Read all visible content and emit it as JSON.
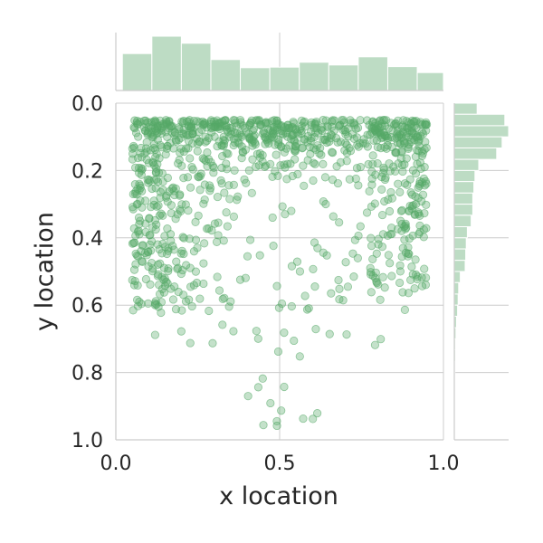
{
  "chart_data": {
    "type": "scatter",
    "title": "",
    "xlabel": "x location",
    "ylabel": "y location",
    "xlim": [
      0.0,
      1.0
    ],
    "ylim": [
      1.0,
      0.0
    ],
    "y_inverted": true,
    "x_ticks": [
      "0.0",
      "0.5",
      "1.0"
    ],
    "y_ticks": [
      "0.0",
      "0.2",
      "0.4",
      "0.6",
      "0.8",
      "1.0"
    ],
    "grid": true,
    "marker_color": "#55a868",
    "marker_alpha": 0.35,
    "point_count": 1100,
    "marginal_x_histogram": {
      "bin_edges": [
        0.02,
        0.11,
        0.2,
        0.29,
        0.38,
        0.47,
        0.56,
        0.65,
        0.74,
        0.83,
        0.92,
        1.0
      ],
      "relative_heights": [
        0.68,
        1.0,
        0.87,
        0.57,
        0.42,
        0.43,
        0.52,
        0.47,
        0.62,
        0.44,
        0.33
      ]
    },
    "marginal_y_histogram": {
      "bin_edges": [
        0.0,
        0.033,
        0.067,
        0.1,
        0.133,
        0.167,
        0.2,
        0.233,
        0.267,
        0.3,
        0.333,
        0.367,
        0.4,
        0.433,
        0.467,
        0.5,
        0.533,
        0.567,
        0.6,
        0.633,
        0.667,
        0.7,
        0.733,
        0.767,
        0.8,
        0.833,
        0.867,
        0.9,
        0.933,
        0.967,
        1.0
      ],
      "relative_heights": [
        0.42,
        0.93,
        1.0,
        0.88,
        0.78,
        0.45,
        0.38,
        0.36,
        0.34,
        0.34,
        0.31,
        0.24,
        0.22,
        0.21,
        0.2,
        0.11,
        0.08,
        0.07,
        0.06,
        0.04,
        0.03,
        0.02,
        0.02,
        0.01,
        0.01,
        0.005,
        0.005,
        0.005,
        0.005,
        0.0
      ]
    },
    "colors": {
      "points": "#55a868",
      "hist": "#bddcc4",
      "grid": "#cccccc",
      "axis": "#cccccc",
      "text": "#262626"
    }
  }
}
